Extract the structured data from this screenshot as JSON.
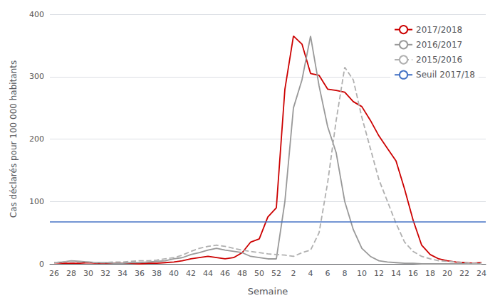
{
  "chart_data": {
    "type": "line",
    "xlabel": "Semaine",
    "ylabel": "Cas déclarés pour 100 000 habitants",
    "categories": [
      "26",
      null,
      "28",
      null,
      "30",
      null,
      "32",
      null,
      "34",
      null,
      "36",
      null,
      "38",
      null,
      "40",
      null,
      "42",
      null,
      "44",
      null,
      "46",
      null,
      "48",
      null,
      "50",
      null,
      "52",
      null,
      "2",
      null,
      "4",
      null,
      "6",
      null,
      "8",
      null,
      "10",
      null,
      "12",
      null,
      "14",
      null,
      "16",
      null,
      "18",
      null,
      "20",
      null,
      "22",
      null,
      "24"
    ],
    "series": [
      {
        "name": "2017/2018",
        "color": "#cc0000",
        "line_style": "solid",
        "values": [
          2,
          1,
          1,
          1,
          2,
          1,
          1,
          1,
          1,
          1,
          0,
          1,
          1,
          2,
          3,
          5,
          8,
          10,
          12,
          10,
          8,
          10,
          18,
          35,
          40,
          75,
          90,
          280,
          365,
          352,
          305,
          302,
          280,
          278,
          275,
          260,
          252,
          230,
          205,
          185,
          165,
          120,
          70,
          30,
          15,
          8,
          5,
          3,
          2,
          1,
          2
        ]
      },
      {
        "name": "2016/2017",
        "color": "#999999",
        "line_style": "solid",
        "values": [
          2,
          3,
          5,
          4,
          3,
          2,
          2,
          1,
          1,
          2,
          2,
          3,
          4,
          5,
          8,
          10,
          15,
          18,
          22,
          25,
          22,
          20,
          18,
          12,
          10,
          8,
          8,
          100,
          250,
          295,
          365,
          285,
          220,
          178,
          100,
          55,
          25,
          12,
          5,
          3,
          2,
          1,
          1,
          0,
          0,
          0,
          0,
          0,
          0,
          0,
          0
        ]
      },
      {
        "name": "2015/2016",
        "color": "#b0b0b0",
        "line_style": "dashed",
        "values": [
          2,
          3,
          4,
          3,
          3,
          2,
          2,
          3,
          3,
          4,
          5,
          5,
          6,
          8,
          10,
          14,
          20,
          25,
          28,
          30,
          28,
          25,
          22,
          20,
          18,
          16,
          15,
          14,
          12,
          18,
          22,
          50,
          130,
          230,
          315,
          295,
          235,
          185,
          135,
          100,
          65,
          35,
          20,
          12,
          8,
          5,
          4,
          3,
          2,
          1,
          1
        ]
      },
      {
        "name": "Seuil 2017/18",
        "type": "hline",
        "color": "#4472c4",
        "line_style": "solid",
        "value": 68
      }
    ],
    "ylim": [
      0,
      400
    ],
    "yticks": [
      0,
      100,
      200,
      300,
      400
    ],
    "grid": true,
    "legend": "upper right"
  }
}
